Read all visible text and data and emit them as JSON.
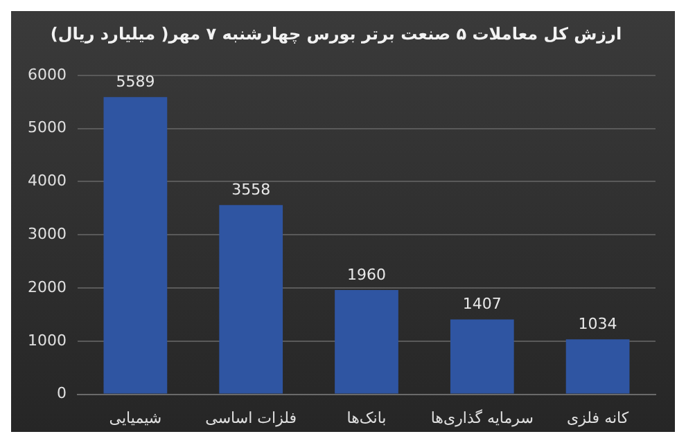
{
  "chart_data": {
    "type": "bar",
    "title": "ارزش کل معاملات ۵ صنعت برتر بورس چهارشنبه ۷ مهر( میلیارد ریال)",
    "categories": [
      "شیمیایی",
      "فلزات اساسی",
      "بانک‌ها",
      "سرمایه گذاری‌ها",
      "کانه فلزی"
    ],
    "values": [
      5589,
      3558,
      1960,
      1407,
      1034
    ],
    "color": "#2f55a2",
    "ylim": [
      0,
      6000
    ],
    "yticks": [
      0,
      1000,
      2000,
      3000,
      4000,
      5000,
      6000
    ],
    "grid": "y",
    "data_labels": true
  }
}
